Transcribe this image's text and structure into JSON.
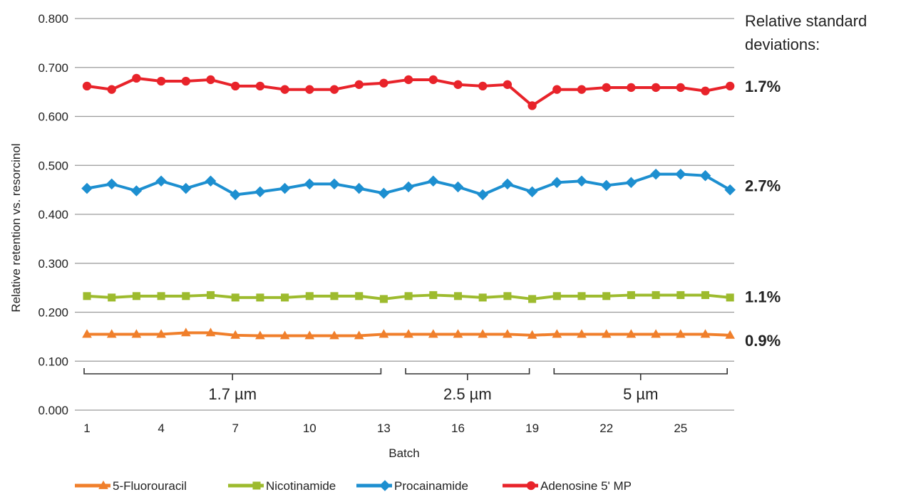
{
  "chart_data": {
    "type": "line",
    "xlabel": "Batch",
    "ylabel": "Relative retention vs. resorcinol",
    "ylim": [
      0,
      0.8
    ],
    "yticks": [
      "0.000",
      "0.100",
      "0.200",
      "0.300",
      "0.400",
      "0.500",
      "0.600",
      "0.700",
      "0.800"
    ],
    "xlim": [
      1,
      27
    ],
    "xticks": [
      1,
      4,
      7,
      10,
      13,
      16,
      19,
      22,
      25
    ],
    "grid": "horizontal",
    "legend_position": "bottom",
    "x": [
      1,
      2,
      3,
      4,
      5,
      6,
      7,
      8,
      9,
      10,
      11,
      12,
      13,
      14,
      15,
      16,
      17,
      18,
      19,
      20,
      21,
      22,
      23,
      24,
      25,
      26,
      27
    ],
    "series": [
      {
        "name": "5-Fluorouracil",
        "color": "#f07f2b",
        "marker": "triangle",
        "values": [
          0.155,
          0.155,
          0.155,
          0.155,
          0.158,
          0.158,
          0.153,
          0.152,
          0.152,
          0.152,
          0.152,
          0.152,
          0.155,
          0.155,
          0.155,
          0.155,
          0.155,
          0.155,
          0.153,
          0.155,
          0.155,
          0.155,
          0.155,
          0.155,
          0.155,
          0.155,
          0.153
        ]
      },
      {
        "name": "Nicotinamide",
        "color": "#9dbb2e",
        "marker": "square",
        "values": [
          0.233,
          0.23,
          0.233,
          0.233,
          0.233,
          0.235,
          0.23,
          0.23,
          0.23,
          0.233,
          0.233,
          0.233,
          0.227,
          0.233,
          0.235,
          0.233,
          0.23,
          0.233,
          0.227,
          0.233,
          0.233,
          0.233,
          0.235,
          0.235,
          0.235,
          0.235,
          0.23
        ]
      },
      {
        "name": "Procainamide",
        "color": "#1d8fd0",
        "marker": "diamond",
        "values": [
          0.453,
          0.462,
          0.448,
          0.468,
          0.453,
          0.468,
          0.44,
          0.446,
          0.453,
          0.462,
          0.462,
          0.453,
          0.443,
          0.456,
          0.468,
          0.456,
          0.44,
          0.462,
          0.446,
          0.465,
          0.468,
          0.459,
          0.465,
          0.482,
          0.482,
          0.479,
          0.45
        ]
      },
      {
        "name": "Adenosine 5' MP",
        "color": "#e8232a",
        "marker": "circle",
        "values": [
          0.662,
          0.655,
          0.678,
          0.672,
          0.672,
          0.675,
          0.662,
          0.662,
          0.655,
          0.655,
          0.655,
          0.665,
          0.668,
          0.675,
          0.675,
          0.665,
          0.662,
          0.665,
          0.622,
          0.655,
          0.655,
          0.659,
          0.659,
          0.659,
          0.659,
          0.652,
          0.662
        ]
      }
    ],
    "rsd_header": "Relative standard deviations:",
    "rsd_header_line1": "Relative standard",
    "rsd_header_line2": "deviations:",
    "rsd_labels": [
      {
        "series": "Adenosine 5' MP",
        "text": "1.7%"
      },
      {
        "series": "Procainamide",
        "text": "2.7%"
      },
      {
        "series": "Nicotinamide",
        "text": "1.1%"
      },
      {
        "series": "5-Fluorouracil",
        "text": "0.9%"
      }
    ],
    "brackets": [
      {
        "label": "1.7 µm",
        "from": 1,
        "to": 13
      },
      {
        "label": "2.5 µm",
        "from": 14,
        "to": 19
      },
      {
        "label": "5 µm",
        "from": 20,
        "to": 27
      }
    ]
  }
}
